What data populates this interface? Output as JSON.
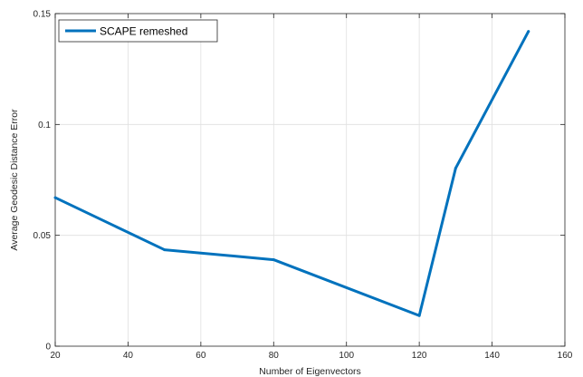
{
  "chart_data": {
    "type": "line",
    "xlabel": "Number of Eigenvectors",
    "ylabel": "Average Geodesic Distance Error",
    "xlim": [
      20,
      160
    ],
    "ylim": [
      0,
      0.15
    ],
    "xticks": [
      20,
      40,
      60,
      80,
      100,
      120,
      140,
      160
    ],
    "yticks": [
      0,
      0.05,
      0.1,
      0.15
    ],
    "xtick_labels": [
      "20",
      "40",
      "60",
      "80",
      "100",
      "120",
      "140",
      "160"
    ],
    "ytick_labels": [
      "0",
      "0.05",
      "0.1",
      "0.15"
    ],
    "grid": true,
    "legend_position": "top-left",
    "series": [
      {
        "name": "SCAPE remeshed",
        "color": "#0072BD",
        "x": [
          20,
          50,
          80,
          120,
          130,
          150
        ],
        "y": [
          0.067,
          0.0435,
          0.039,
          0.0138,
          0.0803,
          0.142
        ]
      }
    ]
  }
}
